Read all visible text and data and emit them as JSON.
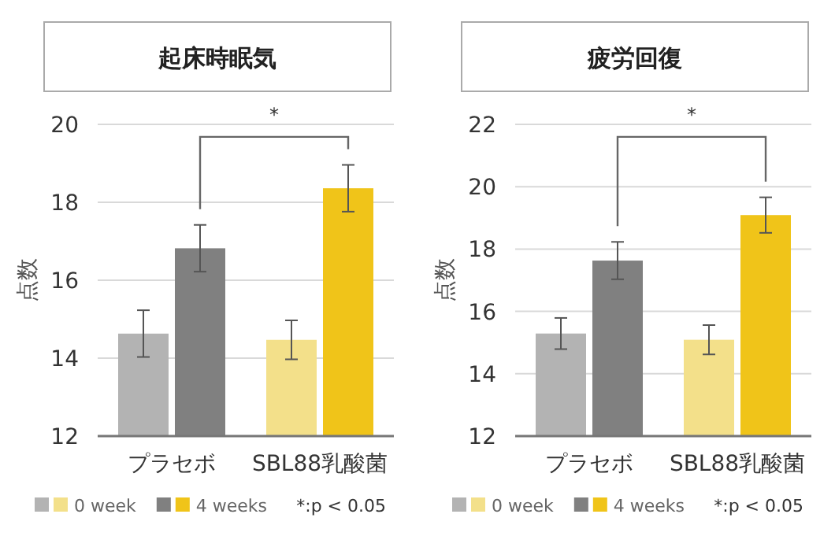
{
  "chart_data": [
    {
      "type": "bar",
      "title": "起床時眠気",
      "ylabel": "点数",
      "categories": [
        "プラセボ",
        "SBL88乳酸菌"
      ],
      "series": [
        {
          "name": "0 week",
          "colors": [
            "#b3b3b3",
            "#f3e08a"
          ],
          "values": [
            14.63,
            14.47
          ],
          "errors": [
            0.6,
            0.5
          ]
        },
        {
          "name": "4 weeks",
          "colors": [
            "#808080",
            "#f0c419"
          ],
          "values": [
            16.82,
            18.36
          ],
          "errors": [
            0.6,
            0.6
          ]
        }
      ],
      "ylim": [
        12,
        20
      ],
      "yticks": [
        12,
        14,
        16,
        18,
        20
      ],
      "grid": "y",
      "legend": "bottom",
      "annotations": [
        "*",
        "*:p < 0.05"
      ]
    },
    {
      "type": "bar",
      "title": "疲労回復",
      "ylabel": "点数",
      "categories": [
        "プラセボ",
        "SBL88乳酸菌"
      ],
      "series": [
        {
          "name": "0 week",
          "colors": [
            "#b3b3b3",
            "#f3e08a"
          ],
          "values": [
            15.29,
            15.09
          ],
          "errors": [
            0.5,
            0.47
          ]
        },
        {
          "name": "4 weeks",
          "colors": [
            "#808080",
            "#f0c419"
          ],
          "values": [
            17.63,
            19.09
          ],
          "errors": [
            0.6,
            0.57
          ]
        }
      ],
      "ylim": [
        12,
        22
      ],
      "yticks": [
        12,
        14,
        16,
        18,
        20,
        22
      ],
      "grid": "y",
      "legend": "bottom",
      "annotations": [
        "*",
        "*:p < 0.05"
      ]
    }
  ]
}
